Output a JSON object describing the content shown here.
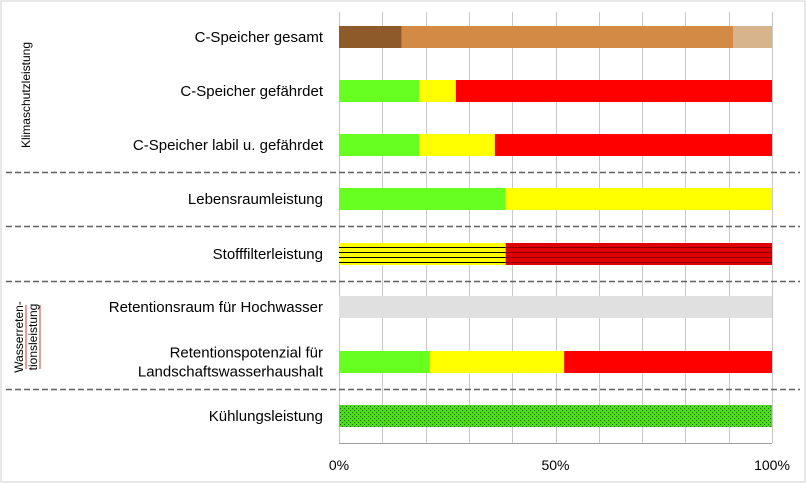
{
  "chart_data": {
    "type": "bar",
    "orientation": "horizontal",
    "stacked": true,
    "xlim": [
      0,
      100
    ],
    "x_ticks": [
      {
        "value": 0,
        "label": "0%"
      },
      {
        "value": 50,
        "label": "50%"
      },
      {
        "value": 100,
        "label": "100%"
      }
    ],
    "grid": true,
    "group_labels": [
      {
        "label": "Klimaschutzleistung",
        "rows": [
          0,
          2
        ]
      },
      {
        "label_lines": [
          "Wasserreten-",
          "tionsleistung"
        ],
        "rows": [
          5,
          6
        ]
      }
    ],
    "separators_after_rows": [
      2,
      3,
      4,
      6
    ],
    "categories": [
      {
        "label_lines": [
          "C-Speicher gesamt"
        ],
        "segments": [
          {
            "value": 14.5,
            "color": "#8e5a2a"
          },
          {
            "value": 76.5,
            "color": "#d38a45"
          },
          {
            "value": 9,
            "color": "#d8b48c"
          }
        ]
      },
      {
        "label_lines": [
          "C-Speicher gefährdet"
        ],
        "segments": [
          {
            "value": 18.5,
            "color": "#66ff1f"
          },
          {
            "value": 8.5,
            "color": "#ffff00"
          },
          {
            "value": 73,
            "color": "#ff0000"
          }
        ]
      },
      {
        "label_lines": [
          "C-Speicher labil u. gefährdet"
        ],
        "segments": [
          {
            "value": 18.5,
            "color": "#66ff1f"
          },
          {
            "value": 17.5,
            "color": "#ffff00"
          },
          {
            "value": 64,
            "color": "#ff0000"
          }
        ]
      },
      {
        "label_lines": [
          "Lebensraumleistung"
        ],
        "segments": [
          {
            "value": 38.5,
            "color": "#66ff1f"
          },
          {
            "value": 61.5,
            "color": "#ffff00"
          }
        ]
      },
      {
        "label_lines": [
          "Stofffilterleistung"
        ],
        "segments": [
          {
            "value": 38.5,
            "color": "#ffff00",
            "pattern": "lines-black"
          },
          {
            "value": 61.5,
            "color": "#e00000",
            "pattern": "lines-darkred"
          }
        ]
      },
      {
        "label_lines": [
          "Retentionsraum für Hochwasser"
        ],
        "segments": [
          {
            "value": 100,
            "color": "#e0e0e0"
          }
        ]
      },
      {
        "label_lines": [
          "Retentionspotenzial für",
          "Landschaftswasserhaushalt"
        ],
        "segments": [
          {
            "value": 21,
            "color": "#66ff1f"
          },
          {
            "value": 31,
            "color": "#ffff00"
          },
          {
            "value": 48,
            "color": "#ff0000"
          }
        ]
      },
      {
        "label_lines": [
          "Kühlungsleistung"
        ],
        "segments": [
          {
            "value": 100,
            "color": "#4cdd1a",
            "pattern": "dots"
          }
        ]
      }
    ]
  }
}
